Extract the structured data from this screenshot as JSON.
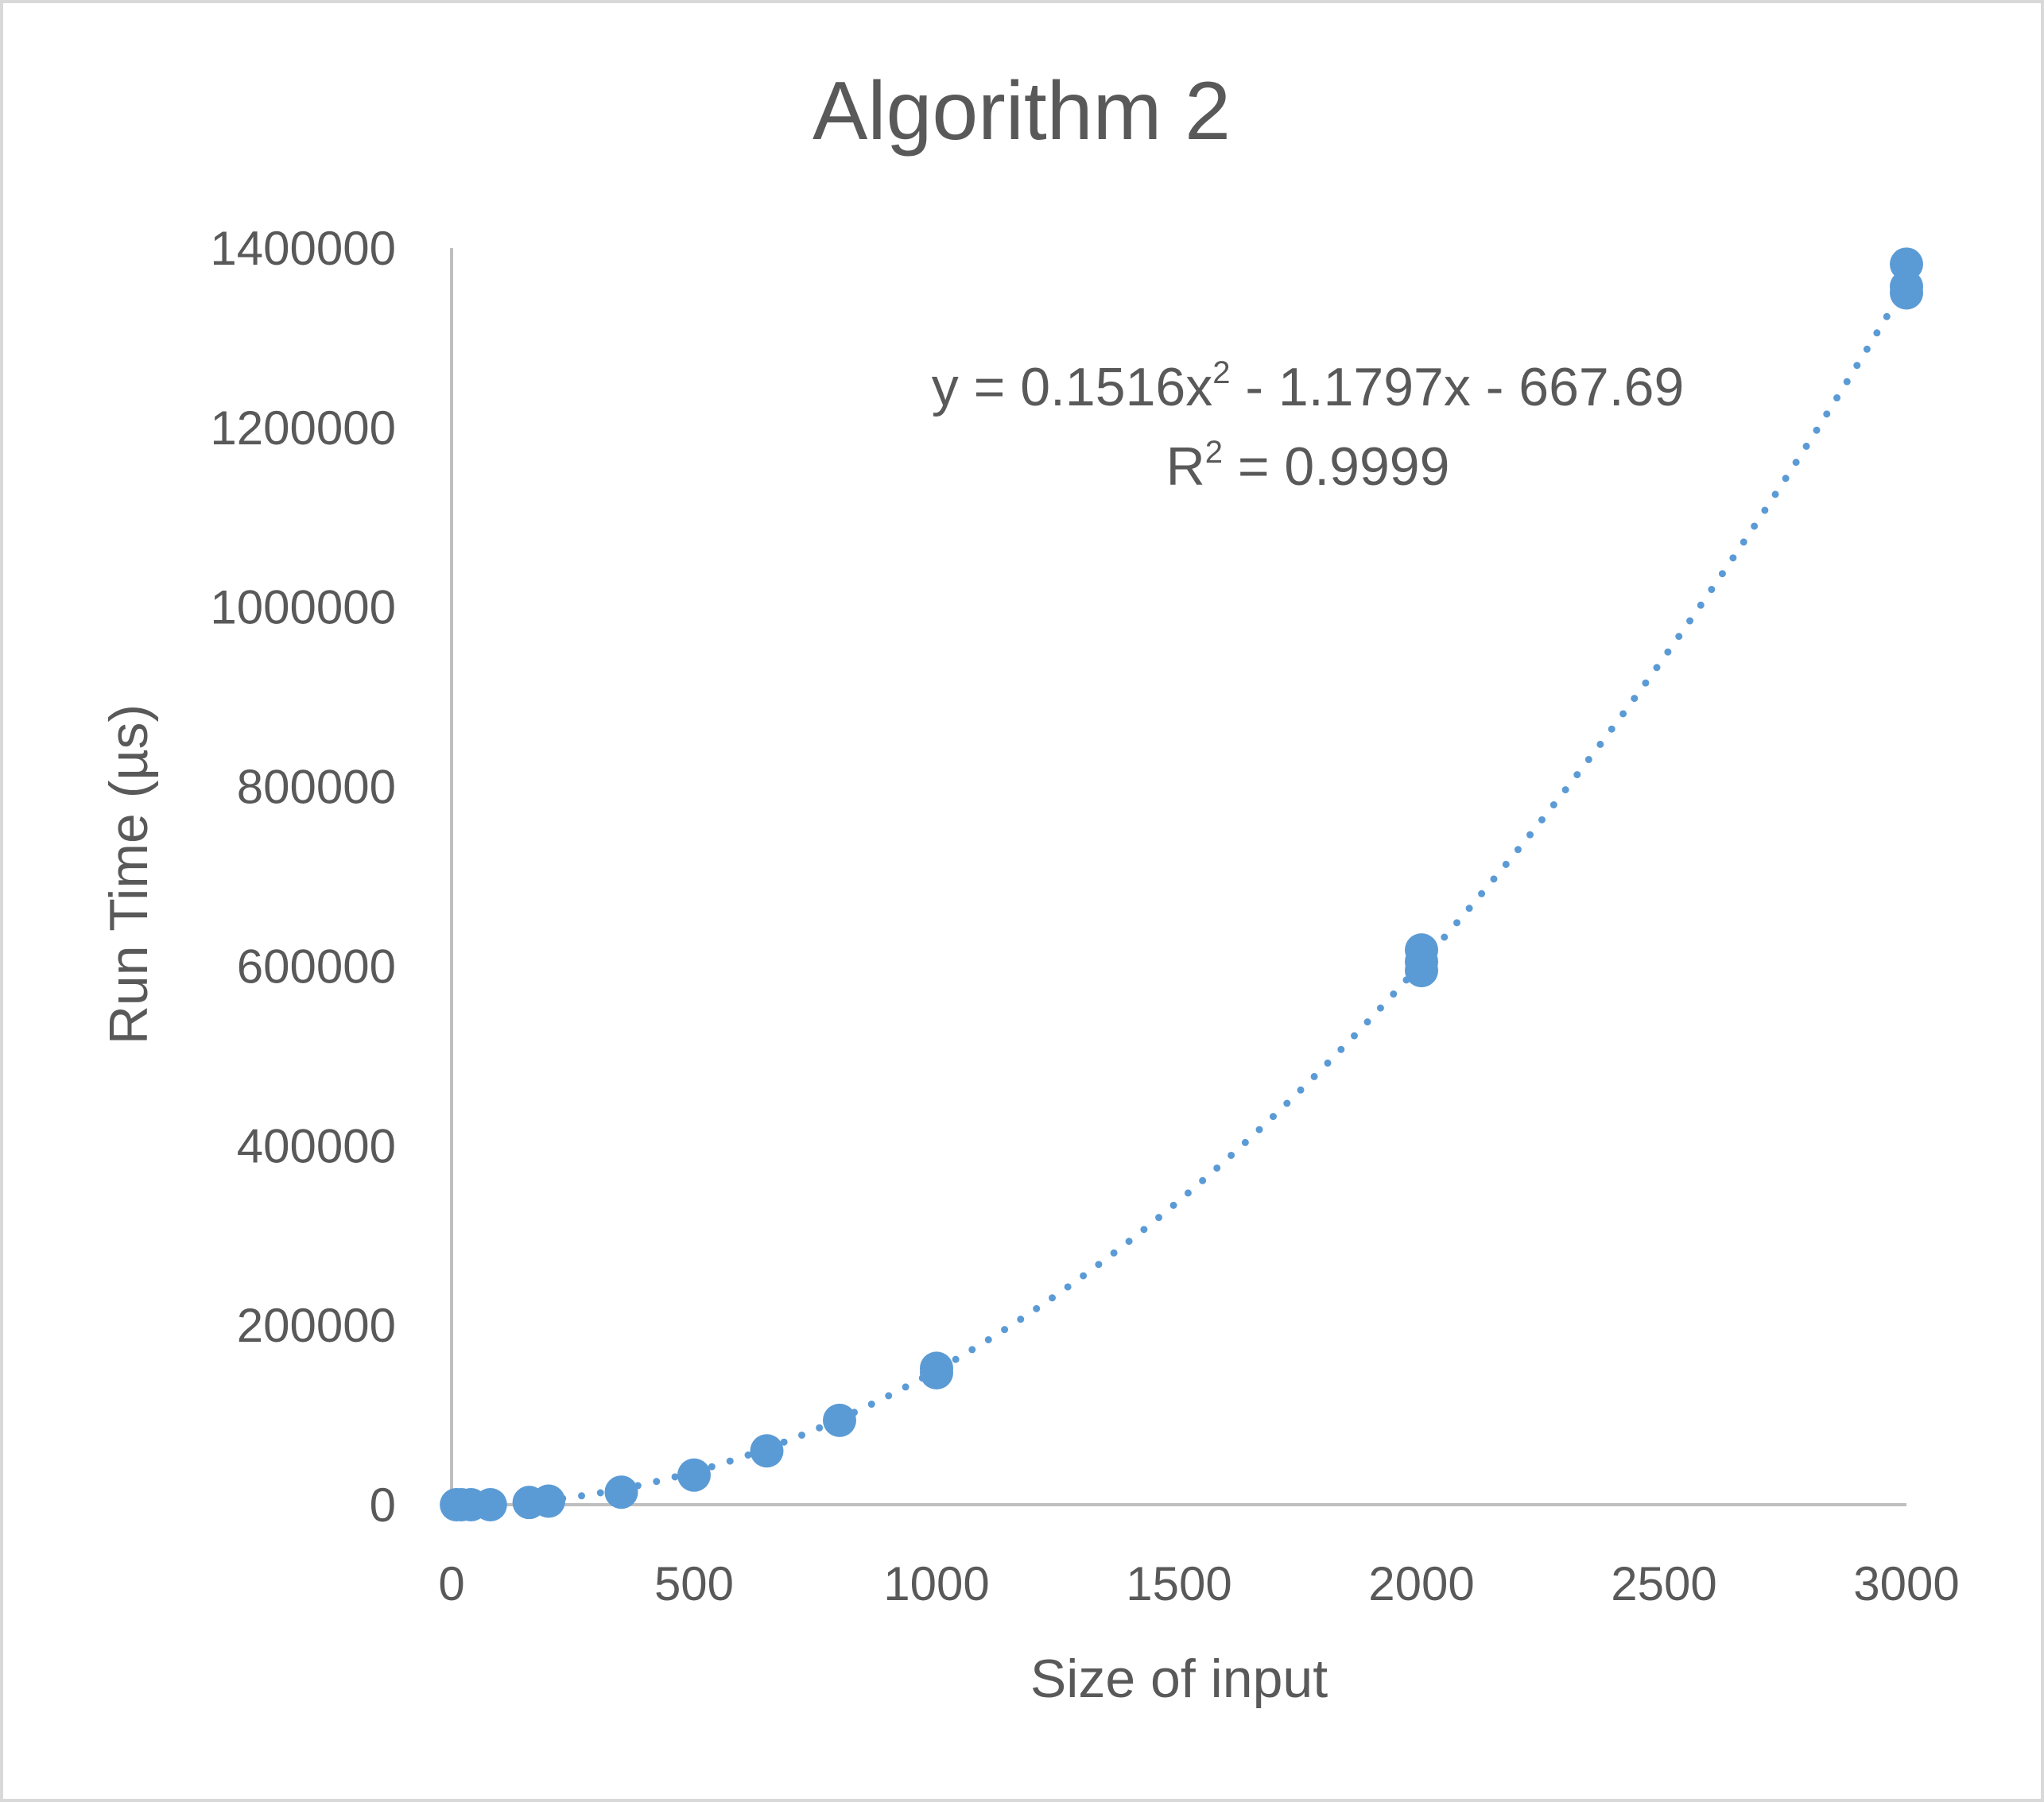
{
  "chart_data": {
    "type": "scatter",
    "title": "Algorithm 2",
    "xlabel": "Size of input",
    "ylabel": "Run Time (µs)",
    "xlim": [
      0,
      3000
    ],
    "ylim": [
      0,
      1400000
    ],
    "x_ticks": [
      "0",
      "500",
      "1000",
      "1500",
      "2000",
      "2500",
      "3000"
    ],
    "y_ticks": [
      "0",
      "200000",
      "400000",
      "600000",
      "800000",
      "1000000",
      "1200000",
      "1400000"
    ],
    "grid": false,
    "legend": "none",
    "marker_color": "#5B9BD5",
    "series": [
      {
        "points": [
          {
            "x": 10,
            "y": 0
          },
          {
            "x": 20,
            "y": 0
          },
          {
            "x": 40,
            "y": 0
          },
          {
            "x": 80,
            "y": 0
          },
          {
            "x": 160,
            "y": 2500
          },
          {
            "x": 200,
            "y": 4000
          },
          {
            "x": 350,
            "y": 14000
          },
          {
            "x": 500,
            "y": 33000
          },
          {
            "x": 650,
            "y": 60000
          },
          {
            "x": 800,
            "y": 94000
          },
          {
            "x": 1000,
            "y": 147000
          },
          {
            "x": 1000,
            "y": 152000
          },
          {
            "x": 2000,
            "y": 595000
          },
          {
            "x": 2000,
            "y": 605000
          },
          {
            "x": 2000,
            "y": 618000
          },
          {
            "x": 3000,
            "y": 1350000
          },
          {
            "x": 3000,
            "y": 1357000
          },
          {
            "x": 3000,
            "y": 1382000
          }
        ]
      }
    ],
    "trendline": {
      "type": "polynomial",
      "order": 2,
      "style": "dotted",
      "coefficients": {
        "a": 0.1516,
        "b": -1.1797,
        "c": -667.69
      },
      "equation_main": "y = 0.1516x",
      "equation_sup": "2",
      "equation_rest": " - 1.1797x - 667.69",
      "r2_main": "R",
      "r2_sup": "2",
      "r2_rest": " = 0.9999"
    }
  }
}
